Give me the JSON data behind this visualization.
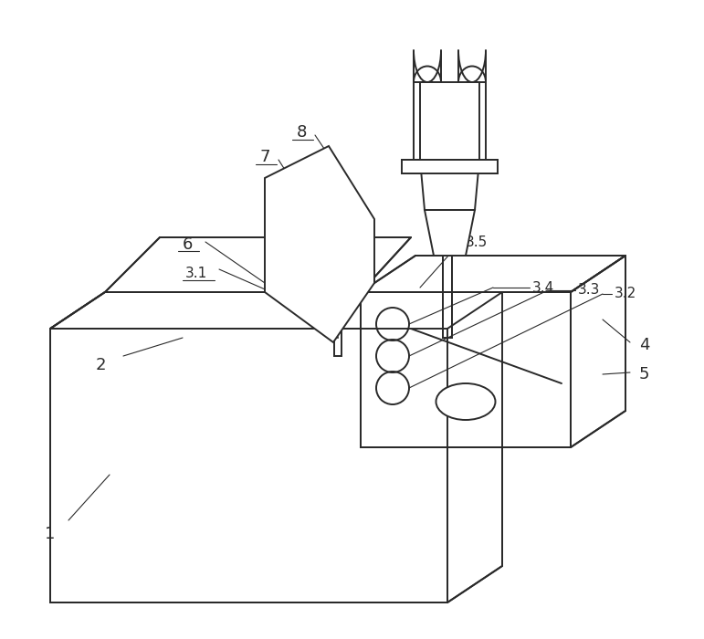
{
  "bg_color": "#ffffff",
  "line_color": "#2a2a2a",
  "lw": 1.4,
  "thin_lw": 0.8,
  "fig_w": 7.71,
  "fig_h": 7.0,
  "dpi": 100
}
